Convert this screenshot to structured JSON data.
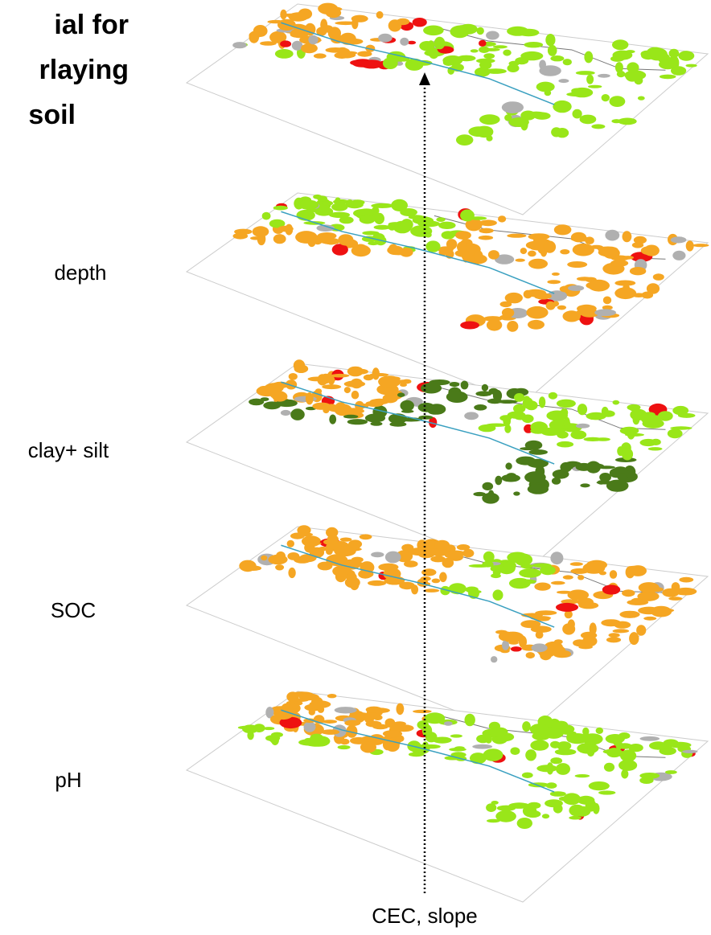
{
  "title": {
    "lines": [
      "ial for",
      "rlaying",
      "soil"
    ]
  },
  "layers": [
    {
      "label": "depth"
    },
    {
      "label": "clay+ silt"
    },
    {
      "label": "SOC"
    },
    {
      "label": "pH"
    }
  ],
  "axis_label": "CEC, slope"
}
